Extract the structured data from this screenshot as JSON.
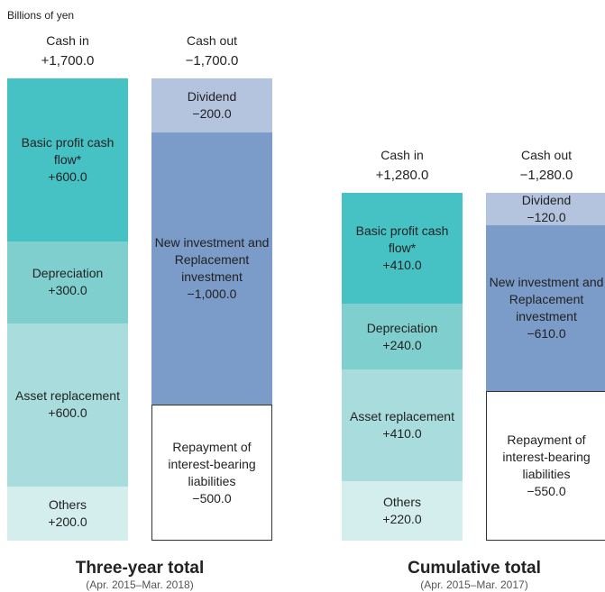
{
  "chart_data": [
    {
      "type": "stacked-bar",
      "y_label": "Billions of yen",
      "title": "Three-year total",
      "subtitle": "(Apr. 2015–Mar. 2018)",
      "ylim": [
        0,
        1700
      ],
      "categories": [
        "Cash in",
        "Cash out"
      ],
      "totals": [
        1700,
        -1700
      ],
      "total_labels": [
        "+1,700.0",
        "−1,700.0"
      ],
      "bars": [
        {
          "segments": [
            {
              "name": "Basic profit cash flow*",
              "value": 600,
              "value_label": "+600.0",
              "color": "#46c1c4"
            },
            {
              "name": "Depreciation",
              "value": 300,
              "value_label": "+300.0",
              "color": "#7fcfcf"
            },
            {
              "name": "Asset replacement",
              "value": 600,
              "value_label": "+600.0",
              "color": "#a9dcdc"
            },
            {
              "name": "Others",
              "value": 200,
              "value_label": "+200.0",
              "color": "#d4eded"
            }
          ]
        },
        {
          "segments": [
            {
              "name": "Dividend",
              "value": -200,
              "value_label": "−200.0",
              "color": "#b4c4df"
            },
            {
              "name": "New investment and Replacement investment",
              "value": -1000,
              "value_label": "−1,000.0",
              "color": "#7b9bc8"
            },
            {
              "name": "Repayment of interest-bearing liabilities",
              "value": -500,
              "value_label": "−500.0",
              "color": "#ffffff"
            }
          ]
        }
      ]
    },
    {
      "type": "stacked-bar",
      "title": "Cumulative total",
      "subtitle": "(Apr. 2015–Mar. 2017)",
      "ylim": [
        0,
        1700
      ],
      "categories": [
        "Cash in",
        "Cash out"
      ],
      "totals": [
        1280,
        -1280
      ],
      "total_labels": [
        "+1,280.0",
        "−1,280.0"
      ],
      "bars": [
        {
          "segments": [
            {
              "name": "Basic profit cash flow*",
              "value": 410,
              "value_label": "+410.0",
              "color": "#46c1c4"
            },
            {
              "name": "Depreciation",
              "value": 240,
              "value_label": "+240.0",
              "color": "#7fcfcf"
            },
            {
              "name": "Asset replacement",
              "value": 410,
              "value_label": "+410.0",
              "color": "#a9dcdc"
            },
            {
              "name": "Others",
              "value": 220,
              "value_label": "+220.0",
              "color": "#d4eded"
            }
          ]
        },
        {
          "segments": [
            {
              "name": "Dividend",
              "value": -120,
              "value_label": "−120.0",
              "color": "#b4c4df"
            },
            {
              "name": "New investment and Replacement investment",
              "value": -610,
              "value_label": "−610.0",
              "color": "#7b9bc8"
            },
            {
              "name": "Repayment of interest-bearing liabilities",
              "value": -550,
              "value_label": "−550.0",
              "color": "#ffffff"
            }
          ]
        }
      ]
    }
  ]
}
